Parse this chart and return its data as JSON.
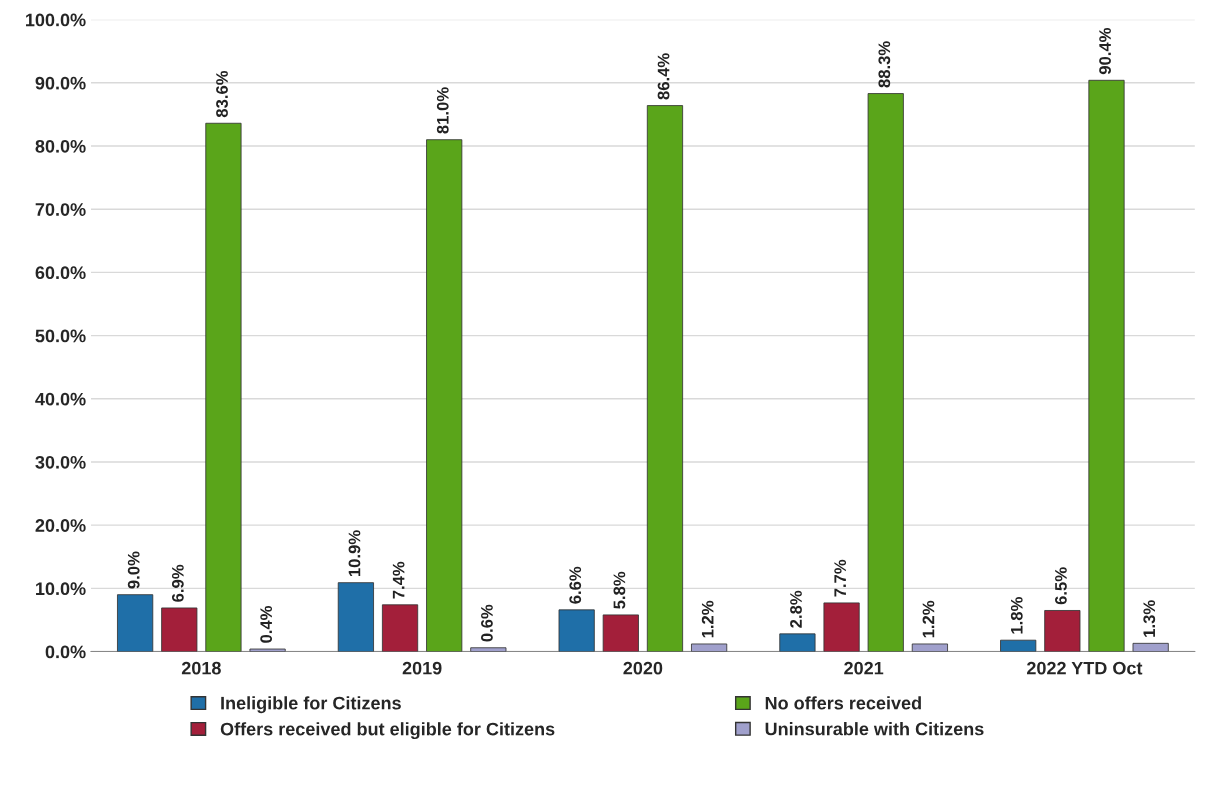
{
  "chart_data": {
    "type": "bar",
    "categories": [
      "2018",
      "2019",
      "2020",
      "2021",
      "2022 YTD Oct"
    ],
    "series": [
      {
        "name": "Ineligible for Citizens",
        "color": "#1f6fa8",
        "values": [
          9.0,
          10.9,
          6.6,
          2.8,
          1.8
        ],
        "value_labels": [
          "9.0%",
          "10.9%",
          "6.6%",
          "2.8%",
          "1.8%"
        ]
      },
      {
        "name": "Offers received but eligible for Citizens",
        "color": "#a31f3a",
        "values": [
          6.9,
          7.4,
          5.8,
          7.7,
          6.5
        ],
        "value_labels": [
          "6.9%",
          "7.4%",
          "5.8%",
          "7.7%",
          "6.5%"
        ]
      },
      {
        "name": "No offers received",
        "color": "#5aa51a",
        "values": [
          83.6,
          81.0,
          86.4,
          88.3,
          90.4
        ],
        "value_labels": [
          "83.6%",
          "81.0%",
          "86.4%",
          "88.3%",
          "90.4%"
        ]
      },
      {
        "name": "Uninsurable with Citizens",
        "color": "#a0a0cc",
        "values": [
          0.4,
          0.6,
          1.2,
          1.2,
          1.3
        ],
        "value_labels": [
          "0.4%",
          "0.6%",
          "1.2%",
          "1.2%",
          "1.3%"
        ]
      }
    ],
    "ylim": [
      0,
      100
    ],
    "yticks": [
      {
        "value": 0,
        "label": "0.0%"
      },
      {
        "value": 10,
        "label": "10.0%"
      },
      {
        "value": 20,
        "label": "20.0%"
      },
      {
        "value": 30,
        "label": "30.0%"
      },
      {
        "value": 40,
        "label": "40.0%"
      },
      {
        "value": 50,
        "label": "50.0%"
      },
      {
        "value": 60,
        "label": "60.0%"
      },
      {
        "value": 70,
        "label": "70.0%"
      },
      {
        "value": 80,
        "label": "80.0%"
      },
      {
        "value": 90,
        "label": "90.0%"
      },
      {
        "value": 100,
        "label": "100.0%"
      }
    ],
    "grid": "y",
    "legend": "bottom"
  }
}
